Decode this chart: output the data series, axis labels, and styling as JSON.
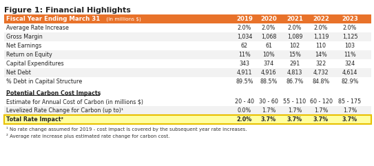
{
  "title": "Figure 1: Financial Highlights",
  "header_label": "Fiscal Year Ending March 31",
  "header_sublabel": " (in millions $)",
  "years": [
    "2019",
    "2020",
    "2021",
    "2022",
    "2023"
  ],
  "header_bg": "#E8722A",
  "header_text_color": "#FFFFFF",
  "alt_row_bg": "#F2F2F2",
  "rows": [
    {
      "label": "Average Rate Increase",
      "values": [
        "2.0%",
        "2.0%",
        "2.0%",
        "2.0%",
        "2.0%"
      ]
    },
    {
      "label": "Gross Margin",
      "values": [
        "1,034",
        "1,068",
        "1,089",
        "1,119",
        "1,125"
      ]
    },
    {
      "label": "Net Earnings",
      "values": [
        "62",
        "61",
        "102",
        "110",
        "103"
      ]
    },
    {
      "label": "Return on Equity",
      "values": [
        "11%",
        "10%",
        "15%",
        "14%",
        "11%"
      ]
    },
    {
      "label": "Capital Expenditures",
      "values": [
        "343",
        "374",
        "291",
        "322",
        "324"
      ]
    },
    {
      "label": "Net Debt",
      "values": [
        "4,911",
        "4,916",
        "4,813",
        "4,732",
        "4,614"
      ]
    },
    {
      "label": "% Debt in Capital Structure",
      "values": [
        "89.5%",
        "88.5%",
        "86.7%",
        "84.8%",
        "82.9%"
      ]
    }
  ],
  "section_label": "Potential Carbon Cost Impacts",
  "carbon_rows": [
    {
      "label": "Estimate for Annual Cost of Carbon (in millions $)",
      "values": [
        "20 - 40",
        "30 - 60",
        "55 - 110",
        "60 - 120",
        "85 - 175"
      ],
      "bold": false,
      "highlight": false
    },
    {
      "label": "Levelized Rate Change for Carbon (up to)¹",
      "values": [
        "0.0%",
        "1.7%",
        "1.7%",
        "1.7%",
        "1.7%"
      ],
      "bold": false,
      "highlight": false
    },
    {
      "label": "Total Rate Impact²",
      "values": [
        "2.0%",
        "3.7%",
        "3.7%",
        "3.7%",
        "3.7%"
      ],
      "bold": true,
      "highlight": true
    }
  ],
  "footnotes": [
    "¹ No rate change assumed for 2019 - cost impact is covered by the subsequent year rate increases.",
    "² Average rate increase plus estimated rate change for carbon cost."
  ],
  "highlight_border": "#E8C000",
  "highlight_fill": "#FFFFA0"
}
